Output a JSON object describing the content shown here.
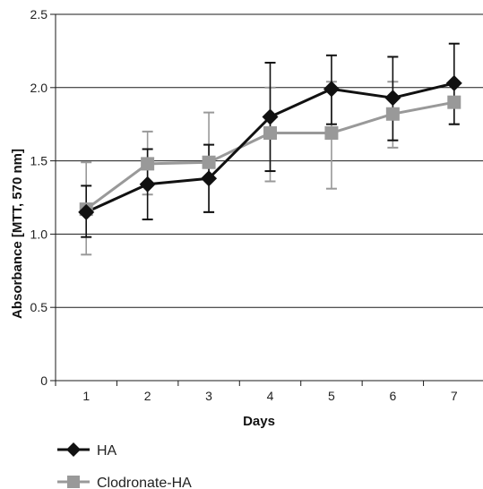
{
  "chart_data": {
    "type": "line",
    "xlabel": "Days",
    "ylabel": "Absorbance [MTT, 570 nm]",
    "categories": [
      "1",
      "2",
      "3",
      "4",
      "5",
      "6",
      "7"
    ],
    "x": [
      1,
      2,
      3,
      4,
      5,
      6,
      7
    ],
    "ylim": [
      0,
      2.5
    ],
    "yticks": [
      0,
      0.5,
      1.0,
      1.5,
      2.0,
      2.5
    ],
    "ytick_labels": [
      "0",
      "0.5",
      "1.0",
      "1.5",
      "2.0",
      "2.5"
    ],
    "grid": true,
    "legend_position": "bottom-left",
    "series": [
      {
        "name": "HA",
        "color": "#111111",
        "marker": "diamond",
        "values": [
          1.15,
          1.34,
          1.38,
          1.8,
          1.99,
          1.93,
          2.03
        ],
        "error_upper": [
          1.33,
          1.58,
          1.61,
          2.17,
          2.22,
          2.21,
          2.3
        ],
        "error_lower": [
          0.98,
          1.1,
          1.15,
          1.43,
          1.75,
          1.64,
          1.75
        ]
      },
      {
        "name": "Clodronate-HA",
        "color": "#999999",
        "marker": "square",
        "values": [
          1.17,
          1.48,
          1.49,
          1.69,
          1.69,
          1.82,
          1.9
        ],
        "error_upper": [
          1.49,
          1.7,
          1.83,
          2.0,
          2.04,
          2.04,
          2.04
        ],
        "error_lower": [
          0.86,
          1.27,
          1.15,
          1.36,
          1.31,
          1.59,
          1.75
        ]
      }
    ]
  }
}
